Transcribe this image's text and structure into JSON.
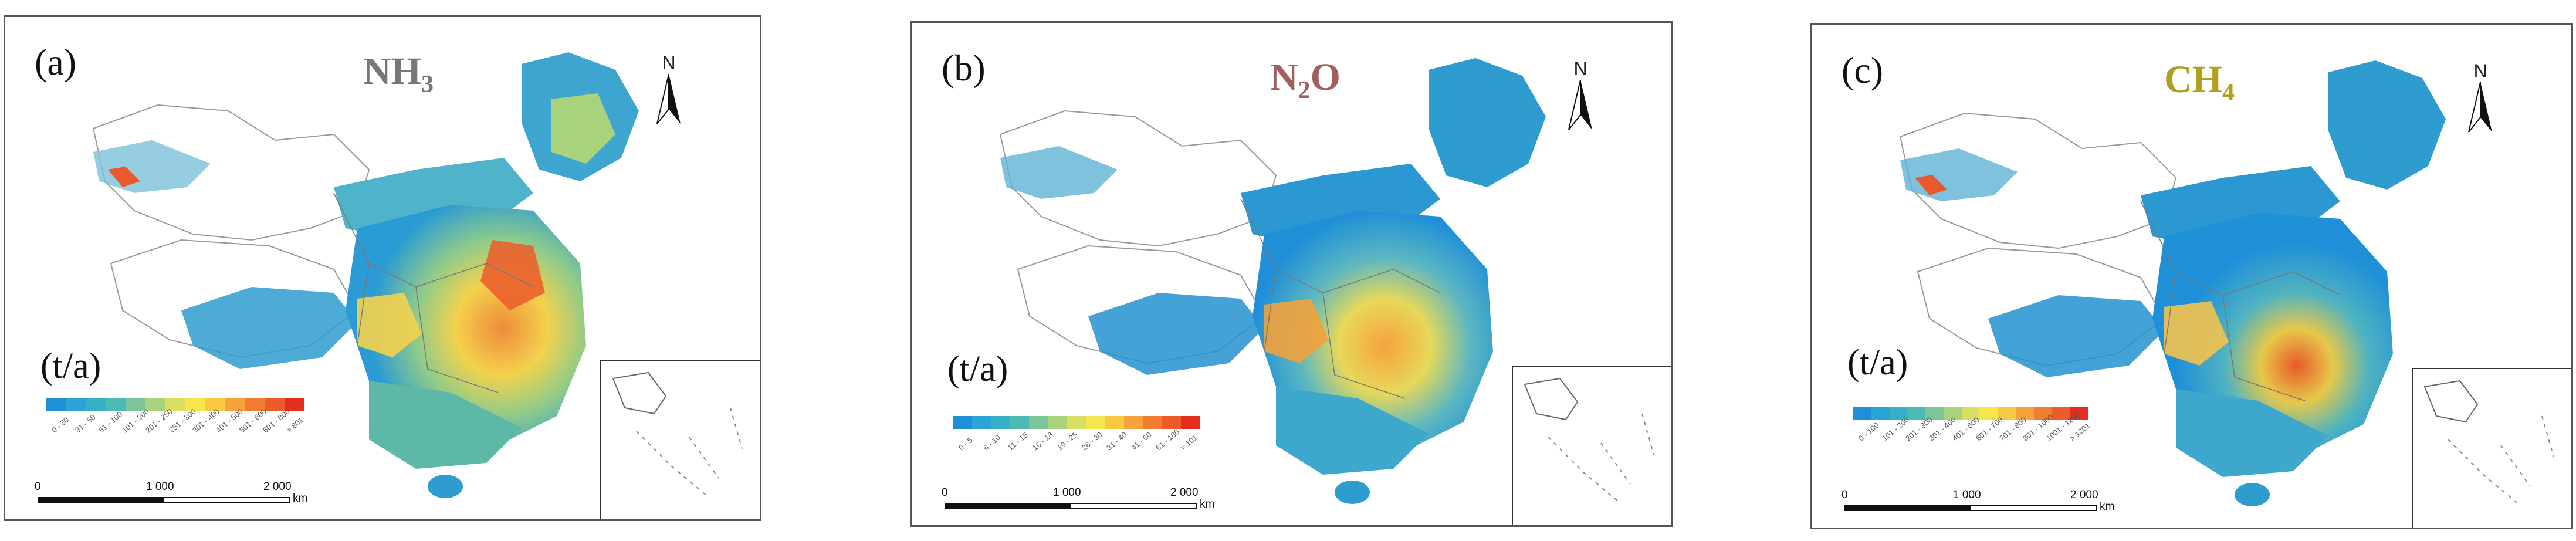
{
  "panels": [
    {
      "letter": "(a)",
      "title_main": "NH",
      "title_sub": "3",
      "title_color": "#777777",
      "north": "N",
      "unit": "(t/a)",
      "legend_colors": [
        "#1f8fd8",
        "#2aa3d6",
        "#35b0c8",
        "#4cb9b2",
        "#7cc49a",
        "#a8d37c",
        "#d8df62",
        "#f6e64d",
        "#f9c844",
        "#f7a23c",
        "#f27c32",
        "#ec5b2a",
        "#e52d20"
      ],
      "legend_labels": [
        "0 - 30",
        "31 - 50",
        "51 - 100",
        "101 - 200",
        "201 - 250",
        "251 - 300",
        "301 - 400",
        "401 - 500",
        "501 - 600",
        "601 - 800",
        "> 801"
      ],
      "scale_labels": [
        "0",
        "1 000",
        "2 000"
      ],
      "scale_unit": "km"
    },
    {
      "letter": "(b)",
      "title_main": "N",
      "title_sub": "2",
      "title_suffix": "O",
      "title_color": "#a06060",
      "north": "N",
      "unit": "(t/a)",
      "legend_colors": [
        "#1f8fd8",
        "#2aa3d6",
        "#35b0c8",
        "#4cb9b2",
        "#7cc49a",
        "#a8d37c",
        "#d8df62",
        "#f6e64d",
        "#f9c844",
        "#f7a23c",
        "#f27c32",
        "#ec5b2a",
        "#e52d20"
      ],
      "legend_labels": [
        "0 - 5",
        "6 - 10",
        "11 - 15",
        "16 - 18",
        "19 - 25",
        "26 - 30",
        "31 - 40",
        "41 - 60",
        "61 - 100",
        "> 101"
      ],
      "scale_labels": [
        "0",
        "1 000",
        "2 000"
      ],
      "scale_unit": "km"
    },
    {
      "letter": "(c)",
      "title_main": "CH",
      "title_sub": "4",
      "title_color": "#b0a020",
      "north": "N",
      "unit": "(t/a)",
      "legend_colors": [
        "#1f8fd8",
        "#2aa3d6",
        "#35b0c8",
        "#4cb9b2",
        "#7cc49a",
        "#a8d37c",
        "#d8df62",
        "#f6e64d",
        "#f9c844",
        "#f7a23c",
        "#f27c32",
        "#ec5b2a",
        "#e52d20"
      ],
      "legend_labels": [
        "0 - 100",
        "101 - 200",
        "201 - 300",
        "301 - 400",
        "401 - 600",
        "601 - 700",
        "701 - 800",
        "801 - 1000",
        "1001 - 1200",
        "> 1201"
      ],
      "scale_labels": [
        "0",
        "1 000",
        "2 000"
      ],
      "scale_unit": "km"
    }
  ]
}
